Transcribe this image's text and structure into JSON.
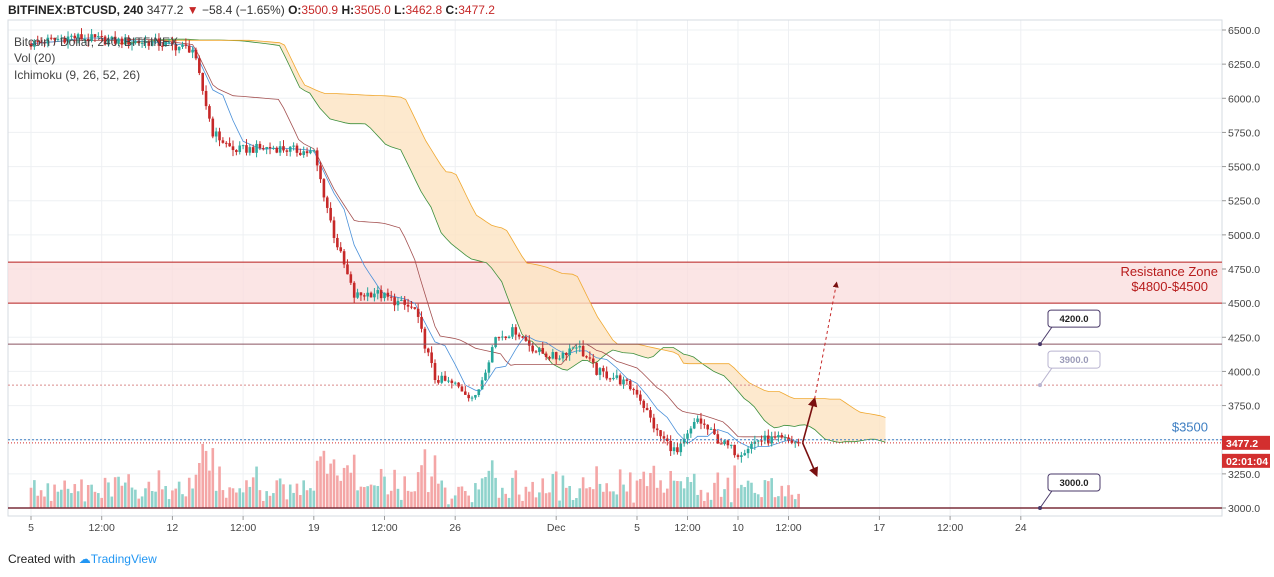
{
  "header": {
    "symbol": "BITFINEX:BTCUSD, 240",
    "last": "3477.2",
    "change": "−58.4 (−1.65%)",
    "o_label": "O:",
    "o_val": "3500.9",
    "h_label": "H:",
    "h_val": "3505.0",
    "l_label": "L:",
    "l_val": "3462.8",
    "c_label": "C:",
    "c_val": "3477.2"
  },
  "indicators": {
    "series_label": "Bitcoin / Dollar, 240, BITFINEX",
    "vol": "Vol (20)",
    "ichimoku": "Ichimoku (9, 26, 52, 26)"
  },
  "footer": {
    "created_with": "Created with",
    "brand": "TradingView"
  },
  "colors": {
    "up": "#26a69a",
    "down": "#c62828",
    "vol_up": "#8fd3cc",
    "vol_down": "#f4a6a6",
    "kijun": "#a35050",
    "tenkan": "#4a90d9",
    "cloud": "#fde4c2",
    "span_a": "#3c8f3c",
    "span_b": "#f0a830",
    "zone_fill": "#f9dcdc",
    "zone_line": "#b71c1c",
    "price_tag": "#d32f2f",
    "accent_blue": "#3d7ec2"
  },
  "annotations": {
    "resistance_line1": "Resistance Zone",
    "resistance_line2": "$4800-$4500",
    "dollar_3500": "$3500",
    "label_4200": "4200.0",
    "label_3900": "3900.0",
    "label_3000": "3000.0",
    "price_tag": "3477.2",
    "countdown": "02:01:04"
  },
  "chart_data": {
    "type": "candlestick",
    "title": "BITFINEX:BTCUSD, 240",
    "ylim": [
      2950,
      6560
    ],
    "y_ticks": [
      "6500.0",
      "6250.0",
      "6000.0",
      "5750.0",
      "5500.0",
      "5250.0",
      "5000.0",
      "4750.0",
      "4500.0",
      "4250.0",
      "4000.0",
      "3750.0",
      "3500.0",
      "3250.0",
      "3000.0"
    ],
    "y_tick_values": [
      6500,
      6250,
      6000,
      5750,
      5500,
      5250,
      5000,
      4750,
      4500,
      4250,
      4000,
      3750,
      3500,
      3250,
      3000
    ],
    "x_ticks": [
      "5",
      "12:00",
      "12",
      "12:00",
      "19",
      "12:00",
      "26",
      "Dec",
      "5",
      "12:00",
      "10",
      "12:00",
      "17",
      "12:00",
      "24"
    ],
    "x_tick_dates": [
      "2018-11-05",
      "2018-11-08 12:00",
      "2018-11-12",
      "2018-11-15 12:00",
      "2018-11-19",
      "2018-11-22 12:00",
      "2018-11-26",
      "2018-12-01",
      "2018-12-05",
      "2018-12-07 12:00",
      "2018-12-10",
      "2018-12-12 12:00",
      "2018-12-17",
      "2018-12-20 12:00",
      "2018-12-24"
    ],
    "resistance_zone": [
      4500,
      4800
    ],
    "horizontal_levels": [
      4200,
      3900,
      3500,
      3000
    ],
    "last_price": 3477.2,
    "price_path": {
      "days": [
        "2018-11-05",
        "2018-11-07",
        "2018-11-09",
        "2018-11-11",
        "2018-11-13",
        "2018-11-14",
        "2018-11-15",
        "2018-11-17",
        "2018-11-19",
        "2018-11-20",
        "2018-11-21",
        "2018-11-22",
        "2018-11-24",
        "2018-11-25",
        "2018-11-26",
        "2018-11-27",
        "2018-11-28",
        "2018-11-29",
        "2018-11-30",
        "2018-12-01",
        "2018-12-02",
        "2018-12-03",
        "2018-12-04",
        "2018-12-05",
        "2018-12-06",
        "2018-12-07",
        "2018-12-08",
        "2018-12-09",
        "2018-12-10",
        "2018-12-11",
        "2018-12-12",
        "2018-12-13"
      ],
      "close": [
        6400,
        6450,
        6420,
        6410,
        6360,
        5750,
        5620,
        5640,
        5600,
        5000,
        4550,
        4580,
        4450,
        3950,
        3900,
        3800,
        4250,
        4300,
        4150,
        4100,
        4200,
        4000,
        3950,
        3850,
        3550,
        3400,
        3650,
        3500,
        3400,
        3500,
        3500,
        3477
      ]
    },
    "forecast": {
      "up_target": 3800,
      "down_target": 3240,
      "dashed_target": 4650
    }
  }
}
